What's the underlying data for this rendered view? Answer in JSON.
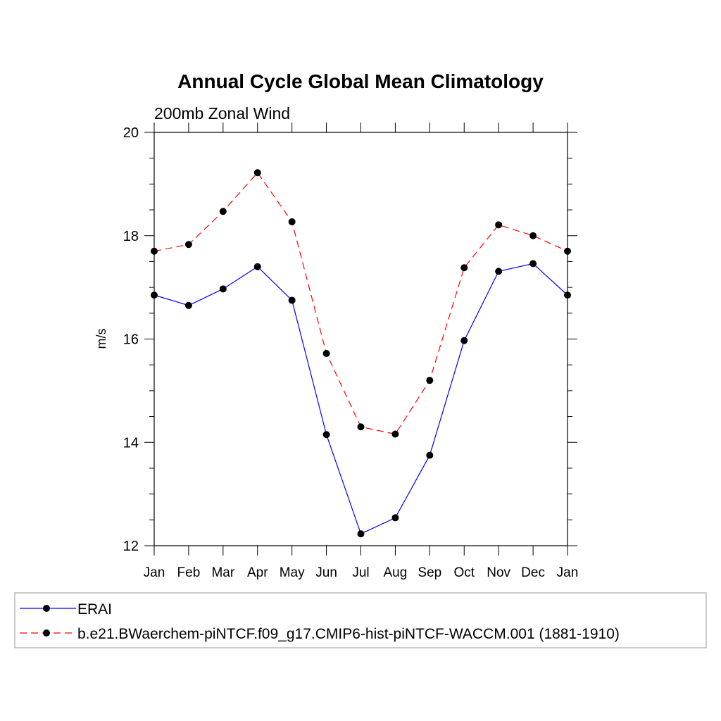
{
  "chart_data": {
    "type": "line",
    "title": "Annual Cycle Global Mean Climatology",
    "subtitle": "200mb Zonal Wind",
    "xlabel": "",
    "ylabel": "m/s",
    "categories": [
      "Jan",
      "Feb",
      "Mar",
      "Apr",
      "May",
      "Jun",
      "Jul",
      "Aug",
      "Sep",
      "Oct",
      "Nov",
      "Dec",
      "Jan"
    ],
    "ylim": [
      12,
      20
    ],
    "yticks": [
      12,
      14,
      16,
      18,
      20
    ],
    "grid": false,
    "legend_position": "bottom",
    "series": [
      {
        "name": "ERAI",
        "color": "#0000ff",
        "line_style": "solid",
        "marker": "filled-circle",
        "values": [
          16.85,
          16.65,
          16.97,
          17.4,
          16.75,
          14.15,
          12.23,
          12.54,
          13.75,
          15.97,
          17.31,
          17.46,
          16.85
        ]
      },
      {
        "name": "b.e21.BWaerchem-piNTCF.f09_g17.CMIP6-hist-piNTCF-WACCM.001 (1881-1910)",
        "color": "#ff0000",
        "line_style": "dashed",
        "marker": "filled-circle",
        "values": [
          17.7,
          17.83,
          18.47,
          19.22,
          18.27,
          15.72,
          14.3,
          14.16,
          15.2,
          17.38,
          18.21,
          18.0,
          17.7
        ]
      }
    ]
  }
}
